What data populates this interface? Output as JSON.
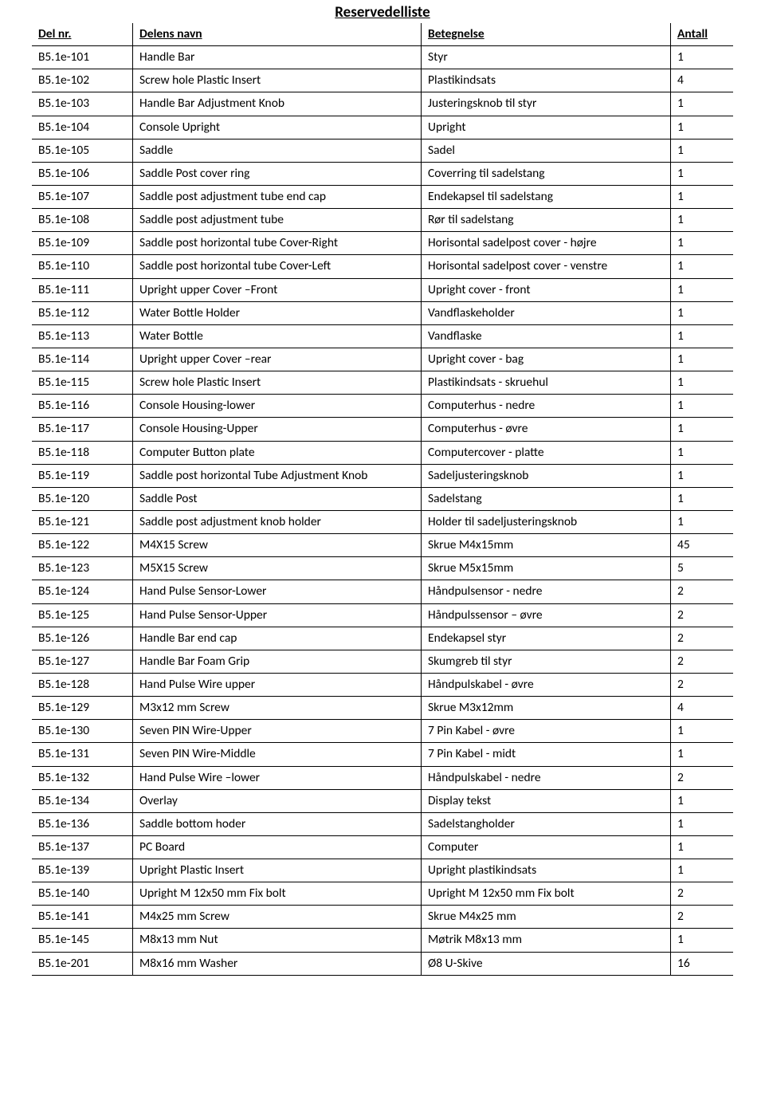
{
  "title": "Reservedelliste",
  "columns": [
    "Del nr.",
    "Delens navn",
    "Betegnelse",
    "Antall"
  ],
  "rows": [
    [
      "B5.1e-101",
      "Handle Bar",
      "Styr",
      "1"
    ],
    [
      "B5.1e-102",
      "Screw hole Plastic Insert",
      "Plastikindsats",
      "4"
    ],
    [
      "B5.1e-103",
      "Handle Bar Adjustment Knob",
      "Justeringsknob til styr",
      "1"
    ],
    [
      "B5.1e-104",
      "Console Upright",
      "Upright",
      "1"
    ],
    [
      "B5.1e-105",
      "Saddle",
      "Sadel",
      "1"
    ],
    [
      "B5.1e-106",
      "Saddle Post cover ring",
      "Coverring til sadelstang",
      "1"
    ],
    [
      "B5.1e-107",
      "Saddle post adjustment  tube  end cap",
      "Endekapsel til sadelstang",
      "1"
    ],
    [
      "B5.1e-108",
      "Saddle post adjustment  tube",
      "Rør til sadelstang",
      "1"
    ],
    [
      "B5.1e-109",
      "Saddle post horizontal tube Cover-Right",
      "Horisontal sadelpost cover - højre",
      "1"
    ],
    [
      "B5.1e-110",
      "Saddle post horizontal tube Cover-Left",
      "Horisontal sadelpost cover - venstre",
      "1"
    ],
    [
      "B5.1e-111",
      "Upright upper Cover –Front",
      "Upright cover - front",
      "1"
    ],
    [
      "B5.1e-112",
      "Water Bottle Holder",
      "Vandflaskeholder",
      "1"
    ],
    [
      "B5.1e-113",
      "Water Bottle",
      "Vandflaske",
      "1"
    ],
    [
      "B5.1e-114",
      "Upright upper Cover –rear",
      "Upright cover - bag",
      "1"
    ],
    [
      "B5.1e-115",
      "Screw hole Plastic Insert",
      "Plastikindsats - skruehul",
      "1"
    ],
    [
      "B5.1e-116",
      "Console Housing-lower",
      "Computerhus - nedre",
      "1"
    ],
    [
      "B5.1e-117",
      "Console Housing-Upper",
      "Computerhus - øvre",
      "1"
    ],
    [
      "B5.1e-118",
      "Computer Button plate",
      "Computercover - platte",
      "1"
    ],
    [
      "B5.1e-119",
      "Saddle post horizontal Tube Adjustment Knob",
      "Sadeljusteringsknob",
      "1"
    ],
    [
      "B5.1e-120",
      "Saddle Post",
      "Sadelstang",
      "1"
    ],
    [
      "B5.1e-121",
      "Saddle post adjustment  knob holder",
      "Holder til sadeljusteringsknob",
      "1"
    ],
    [
      "B5.1e-122",
      "M4X15 Screw",
      "Skrue M4x15mm",
      "45"
    ],
    [
      "B5.1e-123",
      "M5X15 Screw",
      "Skrue M5x15mm",
      "5"
    ],
    [
      "B5.1e-124",
      "Hand Pulse Sensor-Lower",
      "Håndpulsensor - nedre",
      "2"
    ],
    [
      "B5.1e-125",
      "Hand Pulse Sensor-Upper",
      "Håndpulssensor – øvre",
      "2"
    ],
    [
      "B5.1e-126",
      "Handle Bar end cap",
      "Endekapsel styr",
      "2"
    ],
    [
      "B5.1e-127",
      "Handle Bar Foam Grip",
      "Skumgreb til styr",
      "2"
    ],
    [
      "B5.1e-128",
      "Hand Pulse Wire upper",
      "Håndpulskabel - øvre",
      "2"
    ],
    [
      "B5.1e-129",
      "M3x12 mm Screw",
      "Skrue M3x12mm",
      "4"
    ],
    [
      "B5.1e-130",
      "Seven PIN Wire-Upper",
      "7 Pin Kabel  - øvre",
      "1"
    ],
    [
      "B5.1e-131",
      "Seven PIN Wire-Middle",
      "7 Pin Kabel - midt",
      "1"
    ],
    [
      "B5.1e-132",
      "Hand Pulse Wire –lower",
      "Håndpulskabel - nedre",
      "2"
    ],
    [
      "B5.1e-134",
      "Overlay",
      "Display tekst",
      "1"
    ],
    [
      "B5.1e-136",
      "Saddle bottom hoder",
      "Sadelstangholder",
      "1"
    ],
    [
      "B5.1e-137",
      "PC Board",
      "Computer",
      "1"
    ],
    [
      "B5.1e-139",
      "Upright Plastic Insert",
      "Upright plastikindsats",
      "1"
    ],
    [
      "B5.1e-140",
      "Upright M 12x50 mm Fix bolt",
      "Upright M 12x50 mm Fix bolt",
      "2"
    ],
    [
      "B5.1e-141",
      "M4x25 mm Screw",
      "Skrue M4x25 mm",
      "2"
    ],
    [
      "B5.1e-145",
      "M8x13 mm Nut",
      "Møtrik M8x13 mm",
      "1"
    ],
    [
      "B5.1e-201",
      "M8x16 mm Washer",
      "Ø8 U-Skive",
      "16"
    ]
  ]
}
